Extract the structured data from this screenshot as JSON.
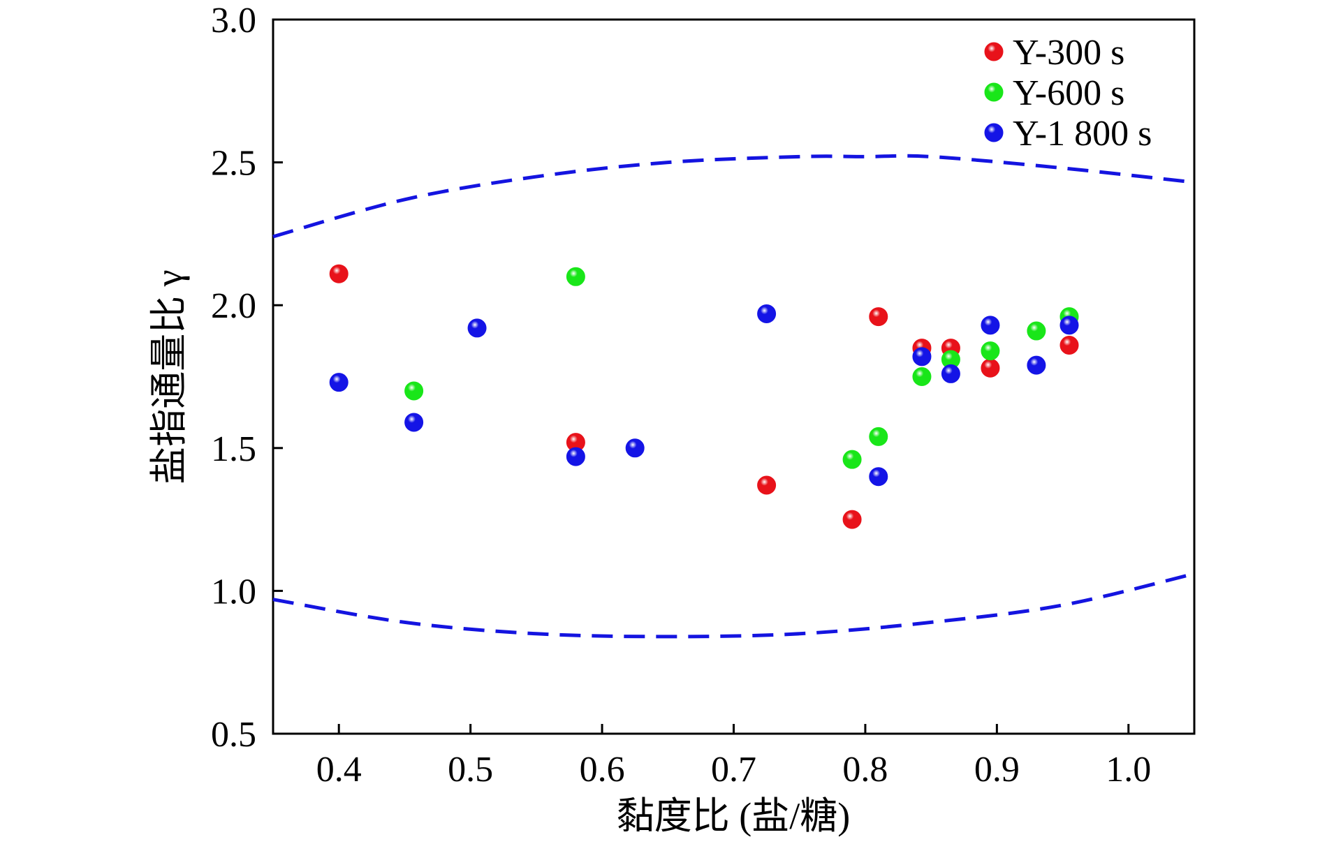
{
  "chart_data": {
    "type": "scatter",
    "xlabel": "黏度比 (盐/糖)",
    "ylabel": "盐指通量比 γ",
    "xlim": [
      0.35,
      1.05
    ],
    "ylim": [
      0.5,
      3.0
    ],
    "xticks": [
      "0.4",
      "0.5",
      "0.6",
      "0.7",
      "0.8",
      "0.9",
      "1.0"
    ],
    "yticks": [
      "0.5",
      "1.0",
      "1.5",
      "2.0",
      "2.5",
      "3.0"
    ],
    "grid": false,
    "legend_position": "top-right",
    "series": [
      {
        "name": "Y-300 s",
        "color": "#e8121a",
        "points": [
          {
            "x": 0.4,
            "y": 2.11
          },
          {
            "x": 0.58,
            "y": 1.52
          },
          {
            "x": 0.725,
            "y": 1.37
          },
          {
            "x": 0.79,
            "y": 1.25
          },
          {
            "x": 0.81,
            "y": 1.96
          },
          {
            "x": 0.843,
            "y": 1.85
          },
          {
            "x": 0.865,
            "y": 1.85
          },
          {
            "x": 0.895,
            "y": 1.78
          },
          {
            "x": 0.955,
            "y": 1.86
          }
        ]
      },
      {
        "name": "Y-600 s",
        "color": "#19e619",
        "points": [
          {
            "x": 0.457,
            "y": 1.7
          },
          {
            "x": 0.58,
            "y": 2.1
          },
          {
            "x": 0.79,
            "y": 1.46
          },
          {
            "x": 0.81,
            "y": 1.54
          },
          {
            "x": 0.843,
            "y": 1.75
          },
          {
            "x": 0.865,
            "y": 1.81
          },
          {
            "x": 0.895,
            "y": 1.84
          },
          {
            "x": 0.93,
            "y": 1.91
          },
          {
            "x": 0.955,
            "y": 1.96
          }
        ]
      },
      {
        "name": "Y-1 800 s",
        "color": "#1414e6",
        "points": [
          {
            "x": 0.4,
            "y": 1.73
          },
          {
            "x": 0.457,
            "y": 1.59
          },
          {
            "x": 0.505,
            "y": 1.92
          },
          {
            "x": 0.58,
            "y": 1.47
          },
          {
            "x": 0.625,
            "y": 1.5
          },
          {
            "x": 0.725,
            "y": 1.97
          },
          {
            "x": 0.81,
            "y": 1.4
          },
          {
            "x": 0.843,
            "y": 1.82
          },
          {
            "x": 0.865,
            "y": 1.76
          },
          {
            "x": 0.895,
            "y": 1.93
          },
          {
            "x": 0.93,
            "y": 1.79
          },
          {
            "x": 0.955,
            "y": 1.93
          }
        ]
      }
    ],
    "reference_curves": [
      {
        "style": "dashed",
        "color": "#1414e0",
        "points": [
          {
            "x": 0.35,
            "y": 2.24
          },
          {
            "x": 0.45,
            "y": 2.37
          },
          {
            "x": 0.55,
            "y": 2.45
          },
          {
            "x": 0.65,
            "y": 2.5
          },
          {
            "x": 0.75,
            "y": 2.52
          },
          {
            "x": 0.8,
            "y": 2.52
          },
          {
            "x": 0.85,
            "y": 2.52
          },
          {
            "x": 0.95,
            "y": 2.48
          },
          {
            "x": 1.05,
            "y": 2.43
          }
        ]
      },
      {
        "style": "dashed",
        "color": "#1414e0",
        "points": [
          {
            "x": 0.35,
            "y": 0.97
          },
          {
            "x": 0.45,
            "y": 0.89
          },
          {
            "x": 0.55,
            "y": 0.85
          },
          {
            "x": 0.65,
            "y": 0.84
          },
          {
            "x": 0.75,
            "y": 0.85
          },
          {
            "x": 0.85,
            "y": 0.89
          },
          {
            "x": 0.95,
            "y": 0.95
          },
          {
            "x": 1.05,
            "y": 1.06
          }
        ]
      }
    ]
  }
}
